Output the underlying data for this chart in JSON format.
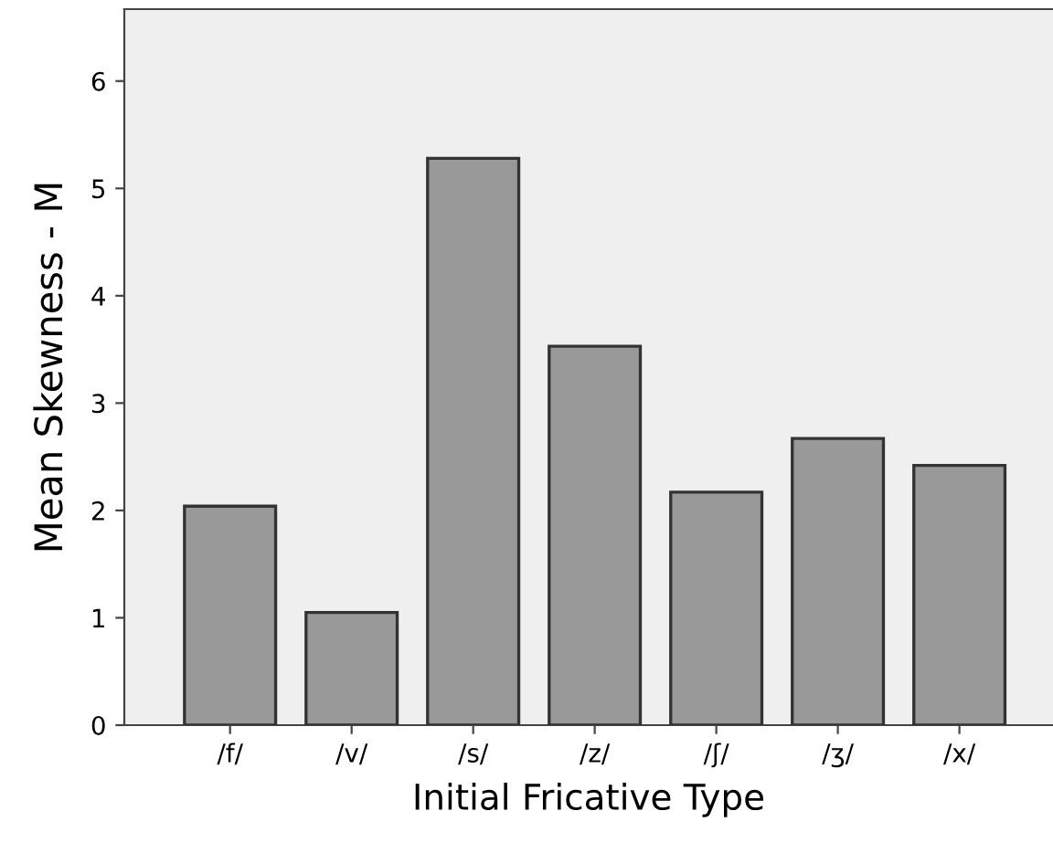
{
  "chart_data": {
    "type": "bar",
    "xlabel": "Initial Fricative Type",
    "ylabel": "Mean Skewness - M",
    "categories": [
      "/f/",
      "/v/",
      "/s/",
      "/z/",
      "/ʃ/",
      "/ʒ/",
      "/x/"
    ],
    "values": [
      2.04,
      1.05,
      5.28,
      3.53,
      2.17,
      2.67,
      2.42
    ],
    "color": "#999999",
    "ylim": [
      0,
      6.67
    ],
    "yticks": [
      0,
      1,
      2,
      3,
      4,
      5,
      6
    ],
    "grid": false
  }
}
